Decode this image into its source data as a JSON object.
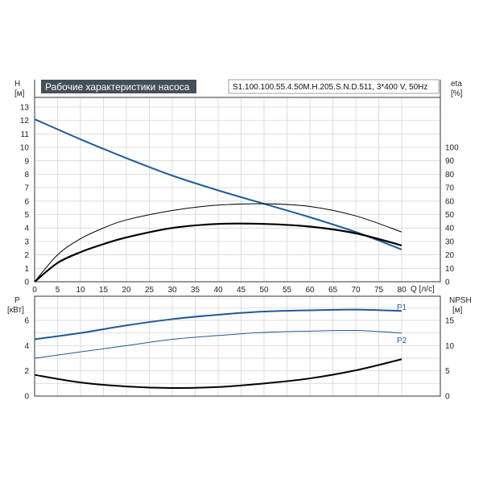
{
  "colors": {
    "blue": "#1f5a9a",
    "black": "#000000",
    "grid": "#cfcfcf",
    "title_bg": "#44505a"
  },
  "header": {
    "title": "Рабочие характеристики насоса",
    "model": "S1.100.100.55.4.50M.H.205.S.N.D.511, 3*400 V, 50Hz"
  },
  "chart_data": [
    {
      "type": "line",
      "panel": "top",
      "left_axis_label": "H",
      "left_axis_unit": "[м]",
      "right_axis_label": "eta",
      "right_axis_unit": "[%]",
      "x_label": "Q [л/с]",
      "xlim": [
        0,
        80
      ],
      "ylim": [
        0,
        13
      ],
      "right_ylim": [
        0,
        130
      ],
      "x_ticks": [
        0,
        5,
        10,
        15,
        20,
        25,
        30,
        35,
        40,
        45,
        50,
        55,
        60,
        65,
        70,
        75,
        80
      ],
      "y_ticks": [
        0,
        1,
        2,
        3,
        4,
        5,
        6,
        7,
        8,
        9,
        10,
        11,
        12,
        13
      ],
      "right_ticks": [
        0,
        10,
        20,
        30,
        40,
        50,
        60,
        70,
        80,
        90,
        100
      ],
      "grid": true,
      "series": [
        {
          "axis": "left",
          "color": "blue",
          "width": 2,
          "x": [
            0,
            10,
            20,
            30,
            40,
            50,
            60,
            70,
            80
          ],
          "y": [
            12.1,
            10.6,
            9.2,
            7.9,
            6.8,
            5.8,
            4.8,
            3.7,
            2.4
          ]
        },
        {
          "axis": "right",
          "color": "black",
          "width": 1,
          "x": [
            0,
            5,
            10,
            15,
            20,
            30,
            40,
            50,
            60,
            70,
            80
          ],
          "y": [
            0,
            20,
            32,
            40,
            46,
            53,
            57,
            58,
            56,
            49,
            37
          ]
        },
        {
          "axis": "right",
          "color": "black",
          "width": 2.2,
          "x": [
            0,
            5,
            10,
            15,
            20,
            30,
            40,
            50,
            60,
            70,
            80
          ],
          "y": [
            0,
            14,
            22,
            28,
            33,
            40,
            43,
            43,
            41,
            36,
            27
          ]
        }
      ]
    },
    {
      "type": "line",
      "panel": "bottom",
      "left_axis_label": "P",
      "left_axis_unit": "[кВт]",
      "right_axis_label": "NPSH",
      "right_axis_unit": "[м]",
      "xlim": [
        0,
        80
      ],
      "ylim": [
        0,
        8
      ],
      "right_ylim": [
        0,
        20
      ],
      "y_ticks": [
        0,
        2,
        4,
        6
      ],
      "right_ticks": [
        0,
        5,
        10,
        15
      ],
      "grid": true,
      "series": [
        {
          "name": "P1",
          "axis": "left",
          "color": "blue",
          "width": 2,
          "x": [
            0,
            10,
            20,
            30,
            40,
            50,
            60,
            70,
            80
          ],
          "y": [
            4.5,
            5.0,
            5.6,
            6.1,
            6.45,
            6.7,
            6.8,
            6.85,
            6.75
          ]
        },
        {
          "name": "P2",
          "axis": "left",
          "color": "blue",
          "width": 1,
          "x": [
            0,
            10,
            20,
            30,
            40,
            50,
            60,
            70,
            80
          ],
          "y": [
            3.0,
            3.5,
            4.0,
            4.5,
            4.8,
            5.05,
            5.15,
            5.2,
            5.0
          ]
        },
        {
          "axis": "right",
          "color": "black",
          "width": 2,
          "x": [
            0,
            10,
            20,
            30,
            40,
            50,
            60,
            70,
            80
          ],
          "y": [
            4.2,
            2.7,
            1.9,
            1.6,
            1.8,
            2.5,
            3.5,
            5.1,
            7.3
          ]
        }
      ]
    }
  ]
}
